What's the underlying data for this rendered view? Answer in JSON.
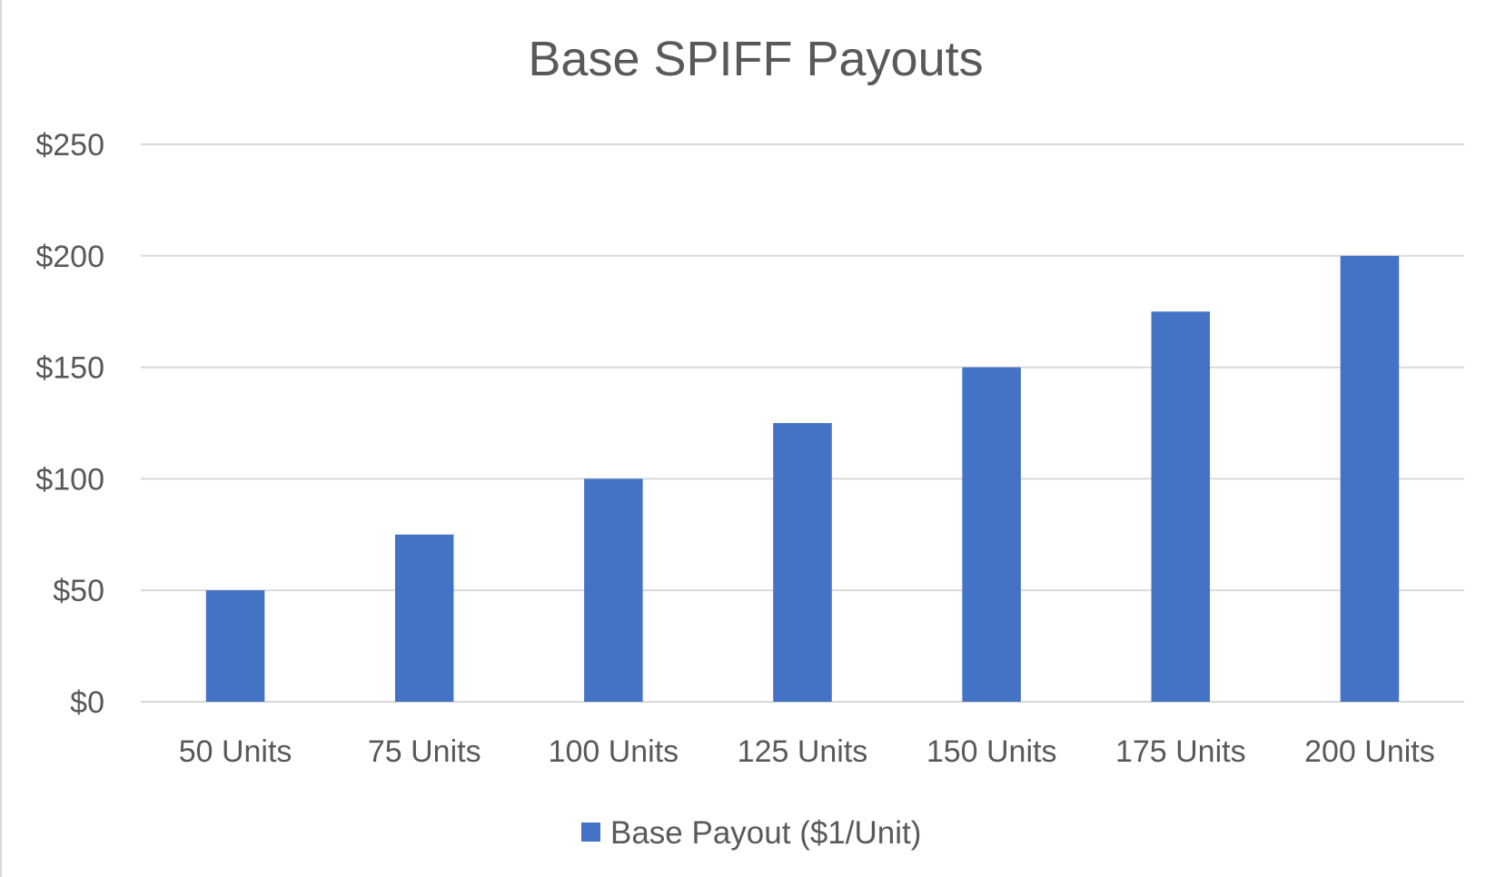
{
  "chart_data": {
    "type": "bar",
    "title": "Base SPIFF Payouts",
    "categories": [
      "50 Units",
      "75 Units",
      "100 Units",
      "125 Units",
      "150 Units",
      "175 Units",
      "200 Units"
    ],
    "series": [
      {
        "name": "Base Payout ($1/Unit)",
        "color": "#4472c4",
        "values": [
          50,
          75,
          100,
          125,
          150,
          175,
          200
        ]
      }
    ],
    "y_ticks": [
      "$0",
      "$50",
      "$100",
      "$150",
      "$200",
      "$250"
    ],
    "y_tick_values": [
      0,
      50,
      100,
      150,
      200,
      250
    ],
    "ylim": [
      0,
      250
    ],
    "xlabel": "",
    "ylabel": "",
    "grid": true,
    "legend_position": "bottom",
    "colors": {
      "gridline": "#d9d9d9",
      "text": "#595959"
    }
  }
}
